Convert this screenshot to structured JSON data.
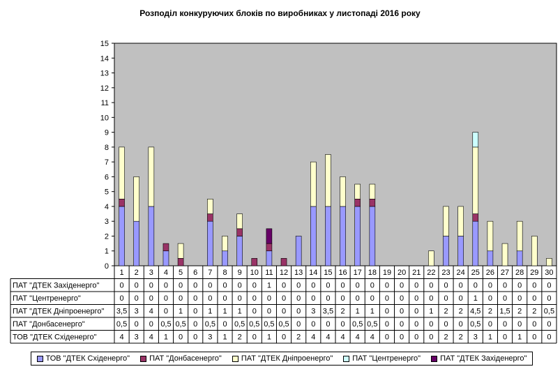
{
  "chart_data": {
    "type": "bar",
    "stacked": true,
    "title": "Розподіл конкуруючих  блоків по виробниках  у листопаді 2016 року",
    "xlabel": "",
    "ylabel": "",
    "ylim": [
      0,
      15
    ],
    "yticks": [
      "0",
      "1",
      "2",
      "3",
      "4",
      "5",
      "6",
      "7",
      "8",
      "9",
      "10",
      "11",
      "12",
      "13",
      "14",
      "15"
    ],
    "grid": false,
    "legend_position": "bottom",
    "categories": [
      "1",
      "2",
      "3",
      "4",
      "5",
      "6",
      "7",
      "8",
      "9",
      "10",
      "11",
      "12",
      "13",
      "14",
      "15",
      "16",
      "17",
      "18",
      "19",
      "20",
      "21",
      "22",
      "23",
      "24",
      "25",
      "26",
      "27",
      "28",
      "29",
      "30"
    ],
    "series": [
      {
        "name": "ТОВ \"ДТЕК Східенерго\"",
        "color": "#9999ff",
        "values": [
          4,
          3,
          4,
          1,
          0,
          0,
          3,
          1,
          2,
          0,
          1,
          0,
          2,
          4,
          4,
          4,
          4,
          4,
          0,
          0,
          0,
          0,
          2,
          2,
          3,
          1,
          0,
          1,
          0,
          0
        ],
        "labels": [
          "4",
          "3",
          "4",
          "1",
          "0",
          "0",
          "3",
          "1",
          "2",
          "0",
          "1",
          "0",
          "2",
          "4",
          "4",
          "4",
          "4",
          "4",
          "0",
          "0",
          "0",
          "0",
          "2",
          "2",
          "3",
          "1",
          "0",
          "1",
          "0",
          "0"
        ]
      },
      {
        "name": "ПАТ \"Донбасенерго\"",
        "color": "#993366",
        "values": [
          0.5,
          0,
          0,
          0.5,
          0.5,
          0,
          0.5,
          0,
          0.5,
          0.5,
          0.5,
          0.5,
          0,
          0,
          0,
          0,
          0.5,
          0.5,
          0,
          0,
          0,
          0,
          0,
          0,
          0.5,
          0,
          0,
          0,
          0,
          0
        ],
        "labels": [
          "0,5",
          "0",
          "0",
          "0,5",
          "0,5",
          "0",
          "0,5",
          "0",
          "0,5",
          "0,5",
          "0,5",
          "0,5",
          "0",
          "0",
          "0",
          "0",
          "0,5",
          "0,5",
          "0",
          "0",
          "0",
          "0",
          "0",
          "0",
          "0,5",
          "0",
          "0",
          "0",
          "0",
          "0"
        ]
      },
      {
        "name": "ПАТ \"ДТЕК Дніпроенерго\"",
        "color": "#ffffcc",
        "values": [
          3.5,
          3,
          4,
          0,
          1,
          0,
          1,
          1,
          1,
          0,
          0,
          0,
          0,
          3,
          3.5,
          2,
          1,
          1,
          0,
          0,
          0,
          1,
          2,
          2,
          4.5,
          2,
          1.5,
          2,
          2,
          0.5
        ],
        "labels": [
          "3,5",
          "3",
          "4",
          "0",
          "1",
          "0",
          "1",
          "1",
          "1",
          "0",
          "0",
          "0",
          "0",
          "3",
          "3,5",
          "2",
          "1",
          "1",
          "0",
          "0",
          "0",
          "1",
          "2",
          "2",
          "4,5",
          "2",
          "1,5",
          "2",
          "2",
          "0,5"
        ]
      },
      {
        "name": "ПАТ \"Центренерго\"",
        "color": "#ccffff",
        "values": [
          0,
          0,
          0,
          0,
          0,
          0,
          0,
          0,
          0,
          0,
          0,
          0,
          0,
          0,
          0,
          0,
          0,
          0,
          0,
          0,
          0,
          0,
          0,
          0,
          1,
          0,
          0,
          0,
          0,
          0
        ],
        "labels": [
          "0",
          "0",
          "0",
          "0",
          "0",
          "0",
          "0",
          "0",
          "0",
          "0",
          "0",
          "0",
          "0",
          "0",
          "0",
          "0",
          "0",
          "0",
          "0",
          "0",
          "0",
          "0",
          "0",
          "0",
          "1",
          "0",
          "0",
          "0",
          "0",
          "0"
        ]
      },
      {
        "name": "ПАТ \"ДТЕК Західенерго\"",
        "color": "#660066",
        "values": [
          0,
          0,
          0,
          0,
          0,
          0,
          0,
          0,
          0,
          0,
          1,
          0,
          0,
          0,
          0,
          0,
          0,
          0,
          0,
          0,
          0,
          0,
          0,
          0,
          0,
          0,
          0,
          0,
          0,
          0
        ],
        "labels": [
          "0",
          "0",
          "0",
          "0",
          "0",
          "0",
          "0",
          "0",
          "0",
          "0",
          "1",
          "0",
          "0",
          "0",
          "0",
          "0",
          "0",
          "0",
          "0",
          "0",
          "0",
          "0",
          "0",
          "0",
          "0",
          "0",
          "0",
          "0",
          "0",
          "0"
        ]
      }
    ],
    "table_row_order": [
      4,
      3,
      2,
      1,
      0
    ]
  }
}
